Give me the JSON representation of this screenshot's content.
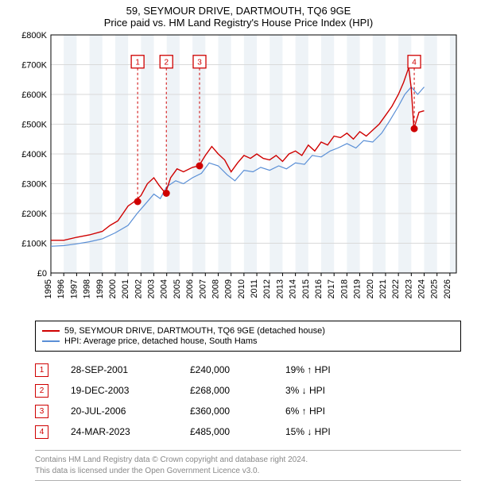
{
  "title_line1": "59, SEYMOUR DRIVE, DARTMOUTH, TQ6 9GE",
  "title_line2": "Price paid vs. HM Land Registry's House Price Index (HPI)",
  "chart": {
    "type": "line",
    "x_min": 1995,
    "x_max": 2026.5,
    "y_min": 0,
    "y_max": 800000,
    "y_ticks": [
      0,
      100000,
      200000,
      300000,
      400000,
      500000,
      600000,
      700000,
      800000
    ],
    "y_tick_labels": [
      "£0",
      "£100K",
      "£200K",
      "£300K",
      "£400K",
      "£500K",
      "£600K",
      "£700K",
      "£800K"
    ],
    "x_ticks": [
      1995,
      1996,
      1997,
      1998,
      1999,
      2000,
      2001,
      2002,
      2003,
      2004,
      2005,
      2006,
      2007,
      2008,
      2009,
      2010,
      2011,
      2012,
      2013,
      2014,
      2015,
      2016,
      2017,
      2018,
      2019,
      2020,
      2021,
      2022,
      2023,
      2024,
      2025,
      2026
    ],
    "grid_color": "#d9d9d9",
    "shade_band_color": "#eef3f7",
    "shade_years": [
      1996,
      1998,
      2000,
      2002,
      2004,
      2006,
      2008,
      2010,
      2012,
      2014,
      2016,
      2018,
      2020,
      2022,
      2024,
      2026
    ],
    "background_color": "#ffffff",
    "border_color": "#000000",
    "red_color": "#cf0000",
    "blue_color": "#5a8fd6",
    "label_fontsize": 11,
    "series_red": [
      [
        1995,
        110000
      ],
      [
        1996,
        110000
      ],
      [
        1997,
        120000
      ],
      [
        1998,
        128000
      ],
      [
        1999,
        140000
      ],
      [
        1999.6,
        160000
      ],
      [
        2000.2,
        175000
      ],
      [
        2000.6,
        200000
      ],
      [
        2001,
        225000
      ],
      [
        2001.5,
        240000
      ],
      [
        2002,
        260000
      ],
      [
        2002.5,
        300000
      ],
      [
        2003,
        320000
      ],
      [
        2003.4,
        295000
      ],
      [
        2003.9,
        268000
      ],
      [
        2004.3,
        320000
      ],
      [
        2004.8,
        350000
      ],
      [
        2005.3,
        340000
      ],
      [
        2006,
        355000
      ],
      [
        2006.5,
        360000
      ],
      [
        2007,
        395000
      ],
      [
        2007.5,
        425000
      ],
      [
        2008,
        400000
      ],
      [
        2008.5,
        380000
      ],
      [
        2009,
        340000
      ],
      [
        2009.5,
        370000
      ],
      [
        2010,
        395000
      ],
      [
        2010.5,
        385000
      ],
      [
        2011,
        400000
      ],
      [
        2011.5,
        385000
      ],
      [
        2012,
        380000
      ],
      [
        2012.5,
        395000
      ],
      [
        2013,
        375000
      ],
      [
        2013.5,
        400000
      ],
      [
        2014,
        410000
      ],
      [
        2014.5,
        395000
      ],
      [
        2015,
        430000
      ],
      [
        2015.5,
        410000
      ],
      [
        2016,
        440000
      ],
      [
        2016.5,
        430000
      ],
      [
        2017,
        460000
      ],
      [
        2017.5,
        455000
      ],
      [
        2018,
        470000
      ],
      [
        2018.5,
        450000
      ],
      [
        2019,
        475000
      ],
      [
        2019.5,
        460000
      ],
      [
        2020,
        480000
      ],
      [
        2020.5,
        500000
      ],
      [
        2021,
        530000
      ],
      [
        2021.5,
        560000
      ],
      [
        2022,
        600000
      ],
      [
        2022.4,
        640000
      ],
      [
        2022.8,
        690000
      ],
      [
        2023,
        620000
      ],
      [
        2023.2,
        485000
      ],
      [
        2023.6,
        540000
      ],
      [
        2024,
        545000
      ]
    ],
    "series_blue": [
      [
        1995,
        90000
      ],
      [
        1996,
        92000
      ],
      [
        1997,
        98000
      ],
      [
        1998,
        105000
      ],
      [
        1999,
        115000
      ],
      [
        2000,
        135000
      ],
      [
        2001,
        160000
      ],
      [
        2001.7,
        200000
      ],
      [
        2002.3,
        230000
      ],
      [
        2003,
        265000
      ],
      [
        2003.5,
        250000
      ],
      [
        2004,
        290000
      ],
      [
        2004.7,
        310000
      ],
      [
        2005.3,
        300000
      ],
      [
        2006,
        320000
      ],
      [
        2006.7,
        335000
      ],
      [
        2007.3,
        370000
      ],
      [
        2008,
        360000
      ],
      [
        2008.7,
        330000
      ],
      [
        2009.3,
        310000
      ],
      [
        2010,
        345000
      ],
      [
        2010.7,
        340000
      ],
      [
        2011.3,
        355000
      ],
      [
        2012,
        345000
      ],
      [
        2012.7,
        360000
      ],
      [
        2013.3,
        350000
      ],
      [
        2014,
        370000
      ],
      [
        2014.7,
        365000
      ],
      [
        2015.3,
        395000
      ],
      [
        2016,
        390000
      ],
      [
        2016.7,
        410000
      ],
      [
        2017.3,
        420000
      ],
      [
        2018,
        435000
      ],
      [
        2018.7,
        420000
      ],
      [
        2019.3,
        445000
      ],
      [
        2020,
        440000
      ],
      [
        2020.7,
        470000
      ],
      [
        2021.3,
        510000
      ],
      [
        2022,
        560000
      ],
      [
        2022.5,
        600000
      ],
      [
        2023,
        625000
      ],
      [
        2023.5,
        600000
      ],
      [
        2024,
        625000
      ]
    ],
    "markers": [
      {
        "n": "1",
        "year": 2001.74,
        "box_y": 710000,
        "point_y": 240000
      },
      {
        "n": "2",
        "year": 2003.97,
        "box_y": 710000,
        "point_y": 268000
      },
      {
        "n": "3",
        "year": 2006.55,
        "box_y": 710000,
        "point_y": 360000
      },
      {
        "n": "4",
        "year": 2023.23,
        "box_y": 710000,
        "point_y": 485000
      }
    ]
  },
  "legend_red": "59, SEYMOUR DRIVE, DARTMOUTH, TQ6 9GE (detached house)",
  "legend_blue": "HPI: Average price, detached house, South Hams",
  "sales": [
    {
      "n": "1",
      "date": "28-SEP-2001",
      "price": "£240,000",
      "diff": "19% ↑ HPI"
    },
    {
      "n": "2",
      "date": "19-DEC-2003",
      "price": "£268,000",
      "diff": "3% ↓ HPI"
    },
    {
      "n": "3",
      "date": "20-JUL-2006",
      "price": "£360,000",
      "diff": "6% ↑ HPI"
    },
    {
      "n": "4",
      "date": "24-MAR-2023",
      "price": "£485,000",
      "diff": "15% ↓ HPI"
    }
  ],
  "footer_line1": "Contains HM Land Registry data © Crown copyright and database right 2024.",
  "footer_line2": "This data is licensed under the Open Government Licence v3.0."
}
